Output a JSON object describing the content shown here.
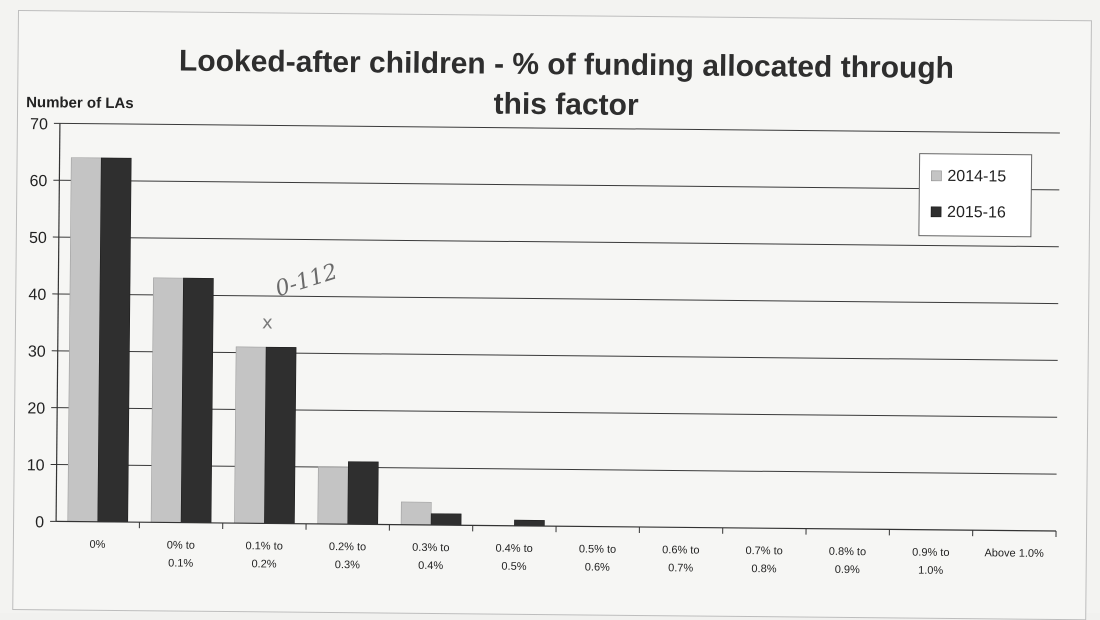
{
  "chart_data": {
    "type": "bar",
    "title": "Looked-after children - % of funding allocated through this factor",
    "ylabel": "Number of LAs",
    "xlabel": "",
    "ylim": [
      0,
      70
    ],
    "yticks": [
      "0",
      "10",
      "20",
      "30",
      "40",
      "50",
      "60",
      "70"
    ],
    "categories": [
      "0%",
      "0% to 0.1%",
      "0.1% to 0.2%",
      "0.2% to 0.3%",
      "0.3% to 0.4%",
      "0.4% to 0.5%",
      "0.5% to 0.6%",
      "0.6% to 0.7%",
      "0.7% to 0.8%",
      "0.8% to 0.9%",
      "0.9% to 1.0%",
      "Above 1.0%"
    ],
    "series": [
      {
        "name": "2014-15",
        "color": "#c4c4c4",
        "values": [
          64,
          43,
          31,
          10,
          4,
          0,
          0,
          0,
          0,
          0,
          0,
          0
        ]
      },
      {
        "name": "2015-16",
        "color": "#2f2f2f",
        "values": [
          64,
          43,
          31,
          11,
          2,
          1,
          0,
          0,
          0,
          0,
          0,
          0
        ]
      }
    ],
    "grid": true,
    "legend_position": "top-right"
  },
  "annotation": {
    "handwritten_text": "0-112",
    "mark": "x"
  }
}
